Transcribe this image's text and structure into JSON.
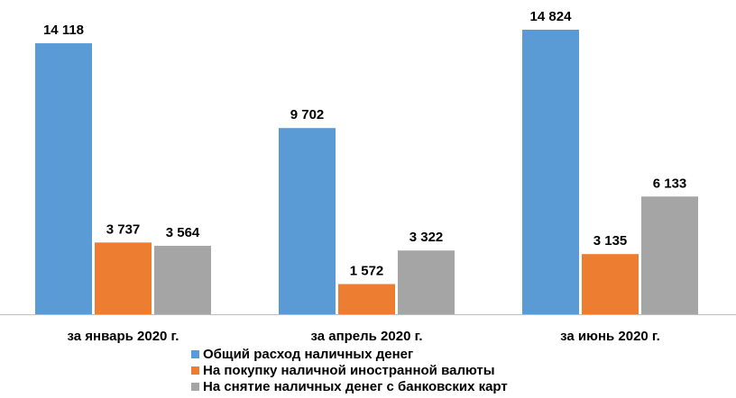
{
  "chart_data": {
    "type": "bar",
    "categories": [
      "за январь 2020 г.",
      "за апрель 2020 г.",
      "за июнь 2020 г."
    ],
    "series": [
      {
        "name": "Общий расход наличных денег",
        "values": [
          14118,
          9702,
          14824
        ],
        "labels": [
          "14 118",
          "9 702",
          "14 824"
        ],
        "color": "#5B9BD5"
      },
      {
        "name": "На покупку наличной иностранной валюты",
        "values": [
          3737,
          1572,
          3135
        ],
        "labels": [
          "3 737",
          "1 572",
          "3 135"
        ],
        "color": "#ED7D31"
      },
      {
        "name": "На снятие наличных денег с банковских карт",
        "values": [
          3564,
          3322,
          6133
        ],
        "labels": [
          "3 564",
          "3 322",
          "6 133"
        ],
        "color": "#A5A5A5"
      }
    ],
    "ylim": [
      0,
      14824
    ],
    "grid": false,
    "legend_position": "bottom"
  }
}
